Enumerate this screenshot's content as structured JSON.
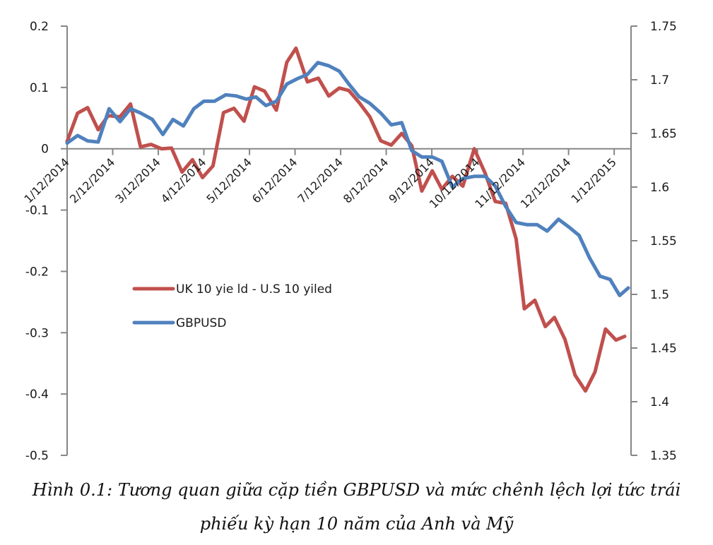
{
  "chart_data": {
    "type": "line",
    "title": "",
    "xlabel": "",
    "ylabel_left": "",
    "ylabel_right": "",
    "x_tick_labels": [
      "1/12/2014",
      "2/12/2014",
      "3/12/2014",
      "4/12/2014",
      "5/12/2014",
      "6/12/2014",
      "7/12/2014",
      "8/12/2014",
      "9/12/2014",
      "10/12/2014",
      "11/12/2014",
      "12/12/2014",
      "1/12/2015"
    ],
    "x_range": [
      0,
      12.37
    ],
    "y_left": {
      "range": [
        -0.5,
        0.2
      ],
      "ticks": [
        0.2,
        0.1,
        0,
        -0.1,
        -0.2,
        -0.3,
        -0.4,
        -0.5
      ],
      "tick_labels": [
        "0.2",
        "0.1",
        "0",
        "-0.1",
        "-0.2",
        "-0.3",
        "-0.4",
        "-0.5"
      ]
    },
    "y_right": {
      "range": [
        1.35,
        1.75
      ],
      "ticks": [
        1.75,
        1.7,
        1.65,
        1.6,
        1.55,
        1.5,
        1.45,
        1.4,
        1.35
      ],
      "tick_labels": [
        "1.75",
        "1.7",
        "1.65",
        "1.6",
        "1.55",
        "1.5",
        "1.45",
        "1.4",
        "1.35"
      ]
    },
    "grid": false,
    "legend_position": "center-left",
    "series": [
      {
        "name": "UK 10 yie ld - U.S 10 yiled",
        "axis": "left",
        "color": "#c0504d",
        "x": [
          0,
          0.23,
          0.45,
          0.68,
          0.9,
          1.16,
          1.39,
          1.61,
          1.84,
          2.07,
          2.29,
          2.52,
          2.75,
          2.97,
          3.2,
          3.43,
          3.66,
          3.88,
          4.11,
          4.33,
          4.59,
          4.82,
          5.02,
          5.27,
          5.51,
          5.74,
          5.97,
          6.18,
          6.41,
          6.64,
          6.88,
          7.11,
          7.34,
          7.56,
          7.78,
          8.01,
          8.22,
          8.45,
          8.68,
          8.93,
          9.17,
          9.39,
          9.62,
          9.85,
          10.03,
          10.26,
          10.49,
          10.69,
          10.92,
          11.14,
          11.37,
          11.58,
          11.81,
          12.04,
          12.23
        ],
        "values": [
          0.012,
          0.058,
          0.067,
          0.031,
          0.054,
          0.052,
          0.073,
          0.003,
          0.007,
          0.0,
          0.001,
          -0.038,
          -0.018,
          -0.047,
          -0.028,
          0.059,
          0.066,
          0.045,
          0.101,
          0.094,
          0.063,
          0.141,
          0.164,
          0.109,
          0.115,
          0.086,
          0.099,
          0.095,
          0.075,
          0.052,
          0.013,
          0.006,
          0.025,
          0.005,
          -0.069,
          -0.036,
          -0.066,
          -0.045,
          -0.061,
          0.0,
          -0.04,
          -0.086,
          -0.089,
          -0.147,
          -0.261,
          -0.247,
          -0.29,
          -0.275,
          -0.311,
          -0.369,
          -0.395,
          -0.364,
          -0.294,
          -0.312,
          -0.306
        ]
      },
      {
        "name": "GBPUSD",
        "axis": "right",
        "color": "#4f81bd",
        "x": [
          0,
          0.23,
          0.45,
          0.68,
          0.92,
          1.16,
          1.39,
          1.61,
          1.87,
          2.1,
          2.32,
          2.55,
          2.78,
          3.0,
          3.23,
          3.48,
          3.7,
          3.93,
          4.14,
          4.36,
          4.59,
          4.82,
          5.05,
          5.27,
          5.5,
          5.74,
          5.97,
          6.18,
          6.41,
          6.64,
          6.88,
          7.11,
          7.34,
          7.56,
          7.78,
          8.01,
          8.22,
          8.45,
          8.68,
          8.93,
          9.17,
          9.39,
          9.62,
          9.85,
          10.08,
          10.31,
          10.53,
          10.78,
          11.0,
          11.23,
          11.46,
          11.69,
          11.91,
          12.12,
          12.31
        ],
        "values": [
          1.641,
          1.648,
          1.643,
          1.642,
          1.673,
          1.661,
          1.673,
          1.669,
          1.663,
          1.649,
          1.663,
          1.657,
          1.673,
          1.68,
          1.68,
          1.686,
          1.685,
          1.682,
          1.684,
          1.676,
          1.68,
          1.696,
          1.701,
          1.705,
          1.716,
          1.713,
          1.708,
          1.696,
          1.684,
          1.678,
          1.669,
          1.658,
          1.66,
          1.634,
          1.628,
          1.628,
          1.624,
          1.6,
          1.608,
          1.61,
          1.61,
          1.601,
          1.582,
          1.567,
          1.565,
          1.565,
          1.559,
          1.57,
          1.563,
          1.555,
          1.534,
          1.517,
          1.514,
          1.499,
          1.506
        ]
      }
    ]
  },
  "caption": {
    "line1": "Hình 0.1: Tương quan giữa cặp tiền GBPUSD và mức chênh lệch lợi tức trái",
    "line2": "phiếu kỳ hạn 10 năm của Anh và Mỹ"
  }
}
